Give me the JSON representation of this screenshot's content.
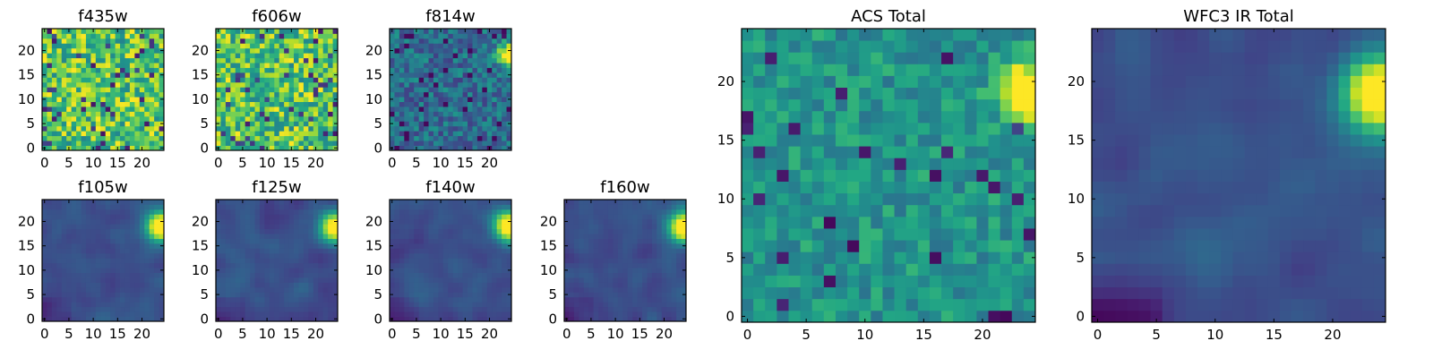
{
  "chart_data": [
    {
      "type": "heatmap",
      "title": "f435w",
      "xticks": [
        "0",
        "5",
        "10",
        "15",
        "20"
      ],
      "yticks": [
        "0",
        "5",
        "10",
        "15",
        "20"
      ],
      "xlim": [
        -0.5,
        24.5
      ],
      "ylim": [
        -0.5,
        24.5
      ],
      "colormap": "viridis",
      "pattern": "uniform-high",
      "seed": 11
    },
    {
      "type": "heatmap",
      "title": "f606w",
      "xticks": [
        "0",
        "5",
        "10",
        "15",
        "20"
      ],
      "yticks": [
        "0",
        "5",
        "10",
        "15",
        "20"
      ],
      "xlim": [
        -0.5,
        24.5
      ],
      "ylim": [
        -0.5,
        24.5
      ],
      "colormap": "viridis",
      "pattern": "uniform-high",
      "seed": 23
    },
    {
      "type": "heatmap",
      "title": "f814w",
      "xticks": [
        "0",
        "5",
        "10",
        "15",
        "20"
      ],
      "yticks": [
        "0",
        "5",
        "10",
        "15",
        "20"
      ],
      "xlim": [
        -0.5,
        24.5
      ],
      "ylim": [
        -0.5,
        24.5
      ],
      "colormap": "viridis",
      "pattern": "noisy-source",
      "source": [
        24,
        19
      ],
      "seed": 37
    },
    {
      "type": "heatmap",
      "title": "f105w",
      "xticks": [
        "0",
        "5",
        "10",
        "15",
        "20"
      ],
      "yticks": [
        "0",
        "5",
        "10",
        "15",
        "20"
      ],
      "xlim": [
        -0.5,
        24.5
      ],
      "ylim": [
        -0.5,
        24.5
      ],
      "colormap": "viridis",
      "pattern": "smooth-source",
      "source": [
        24,
        19
      ],
      "seed": 41
    },
    {
      "type": "heatmap",
      "title": "f125w",
      "xticks": [
        "0",
        "5",
        "10",
        "15",
        "20"
      ],
      "yticks": [
        "0",
        "5",
        "10",
        "15",
        "20"
      ],
      "xlim": [
        -0.5,
        24.5
      ],
      "ylim": [
        -0.5,
        24.5
      ],
      "colormap": "viridis",
      "pattern": "smooth-source",
      "source": [
        24,
        19
      ],
      "seed": 53
    },
    {
      "type": "heatmap",
      "title": "f140w",
      "xticks": [
        "0",
        "5",
        "10",
        "15",
        "20"
      ],
      "yticks": [
        "0",
        "5",
        "10",
        "15",
        "20"
      ],
      "xlim": [
        -0.5,
        24.5
      ],
      "ylim": [
        -0.5,
        24.5
      ],
      "colormap": "viridis",
      "pattern": "smooth-source",
      "source": [
        24,
        19
      ],
      "seed": 67
    },
    {
      "type": "heatmap",
      "title": "f160w",
      "xticks": [
        "0",
        "5",
        "10",
        "15",
        "20"
      ],
      "yticks": [
        "0",
        "5",
        "10",
        "15",
        "20"
      ],
      "xlim": [
        -0.5,
        24.5
      ],
      "ylim": [
        -0.5,
        24.5
      ],
      "colormap": "viridis",
      "pattern": "smooth-source",
      "source": [
        24,
        19
      ],
      "seed": 79
    },
    {
      "type": "heatmap",
      "title": "ACS Total",
      "xticks": [
        "0",
        "5",
        "10",
        "15",
        "20"
      ],
      "yticks": [
        "0",
        "5",
        "10",
        "15",
        "20"
      ],
      "xlim": [
        -0.5,
        24.5
      ],
      "ylim": [
        -0.5,
        24.5
      ],
      "colormap": "viridis",
      "pattern": "mid-source",
      "source": [
        24,
        19
      ],
      "seed": 83
    },
    {
      "type": "heatmap",
      "title": "WFC3 IR Total",
      "xticks": [
        "0",
        "5",
        "10",
        "15",
        "20"
      ],
      "yticks": [
        "0",
        "5",
        "10",
        "15",
        "20"
      ],
      "xlim": [
        -0.5,
        24.5
      ],
      "ylim": [
        -0.5,
        24.5
      ],
      "colormap": "viridis",
      "pattern": "smooth-source",
      "source": [
        24,
        19
      ],
      "seed": 97
    }
  ]
}
